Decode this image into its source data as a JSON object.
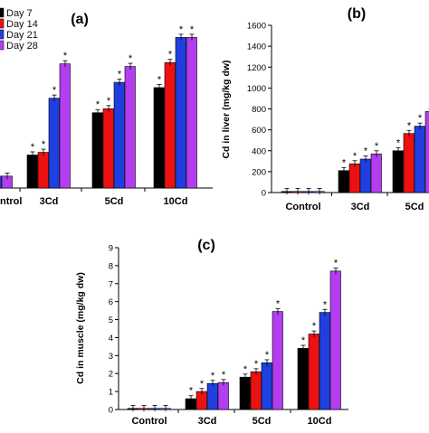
{
  "colors": {
    "Day 7": "#000000",
    "Day 14": "#ee1111",
    "Day 21": "#1f3fe0",
    "Day 28": "#b23ef0"
  },
  "chart_data": [
    {
      "panel": "a",
      "type": "bar",
      "tag": "(a)",
      "categories": [
        "Control",
        "3Cd",
        "5Cd",
        "10Cd"
      ],
      "category_labels_visible": [
        "ntrol",
        "3Cd",
        "5Cd",
        "10Cd"
      ],
      "legend": [
        "Day 7",
        "Day 14",
        "Day 21",
        "Day 28"
      ],
      "ylim": [
        0,
        130
      ],
      "series": [
        {
          "name": "Day 7",
          "values": [
            9,
            25,
            57,
            76
          ]
        },
        {
          "name": "Day 14",
          "values": [
            9,
            27,
            60,
            95
          ]
        },
        {
          "name": "Day 21",
          "values": [
            9,
            68,
            80,
            114
          ]
        },
        {
          "name": "Day 28",
          "values": [
            9,
            94,
            92,
            114
          ]
        }
      ],
      "significant": [
        [
          false,
          true,
          true,
          true
        ],
        [
          false,
          true,
          true,
          true
        ],
        [
          false,
          true,
          true,
          true
        ],
        [
          false,
          true,
          true,
          true
        ]
      ]
    },
    {
      "panel": "b",
      "type": "bar",
      "tag": "(b)",
      "ylabel": "Cd in liver (mg/kg dw)",
      "categories": [
        "Control",
        "3Cd",
        "5Cd"
      ],
      "category_labels_visible": [
        "Control",
        "3Cd",
        "5Cd"
      ],
      "ylim": [
        0,
        1600
      ],
      "yticks": [
        "0",
        "200",
        "400",
        "600",
        "800",
        "1000",
        "1200",
        "1400",
        "1600"
      ],
      "series": [
        {
          "name": "Day 7",
          "values": [
            0,
            210,
            400
          ]
        },
        {
          "name": "Day 14",
          "values": [
            0,
            275,
            565
          ]
        },
        {
          "name": "Day 21",
          "values": [
            0,
            320,
            635
          ]
        },
        {
          "name": "Day 28",
          "values": [
            0,
            370,
            775
          ]
        }
      ],
      "significant": [
        [
          false,
          true,
          true
        ],
        [
          false,
          true,
          true
        ],
        [
          false,
          true,
          true
        ],
        [
          false,
          true,
          true
        ]
      ]
    },
    {
      "panel": "c",
      "type": "bar",
      "tag": "(c)",
      "ylabel": "Cd in muscle (mg/kg dw)",
      "categories": [
        "Control",
        "3Cd",
        "5Cd",
        "10Cd"
      ],
      "category_labels_visible": [
        "Control",
        "3Cd",
        "5Cd",
        "10Cd"
      ],
      "ylim": [
        0,
        9
      ],
      "yticks": [
        "0",
        "1",
        "2",
        "3",
        "4",
        "5",
        "6",
        "7",
        "8",
        "9"
      ],
      "series": [
        {
          "name": "Day 7",
          "values": [
            0.03,
            0.6,
            1.8,
            3.4
          ]
        },
        {
          "name": "Day 14",
          "values": [
            0.03,
            1.0,
            2.1,
            4.2
          ]
        },
        {
          "name": "Day 21",
          "values": [
            0.03,
            1.45,
            2.6,
            5.4
          ]
        },
        {
          "name": "Day 28",
          "values": [
            0.03,
            1.5,
            5.45,
            7.7
          ]
        }
      ],
      "significant": [
        [
          false,
          true,
          true,
          true
        ],
        [
          false,
          true,
          true,
          true
        ],
        [
          false,
          true,
          true,
          true
        ],
        [
          false,
          true,
          true,
          true
        ]
      ]
    }
  ]
}
